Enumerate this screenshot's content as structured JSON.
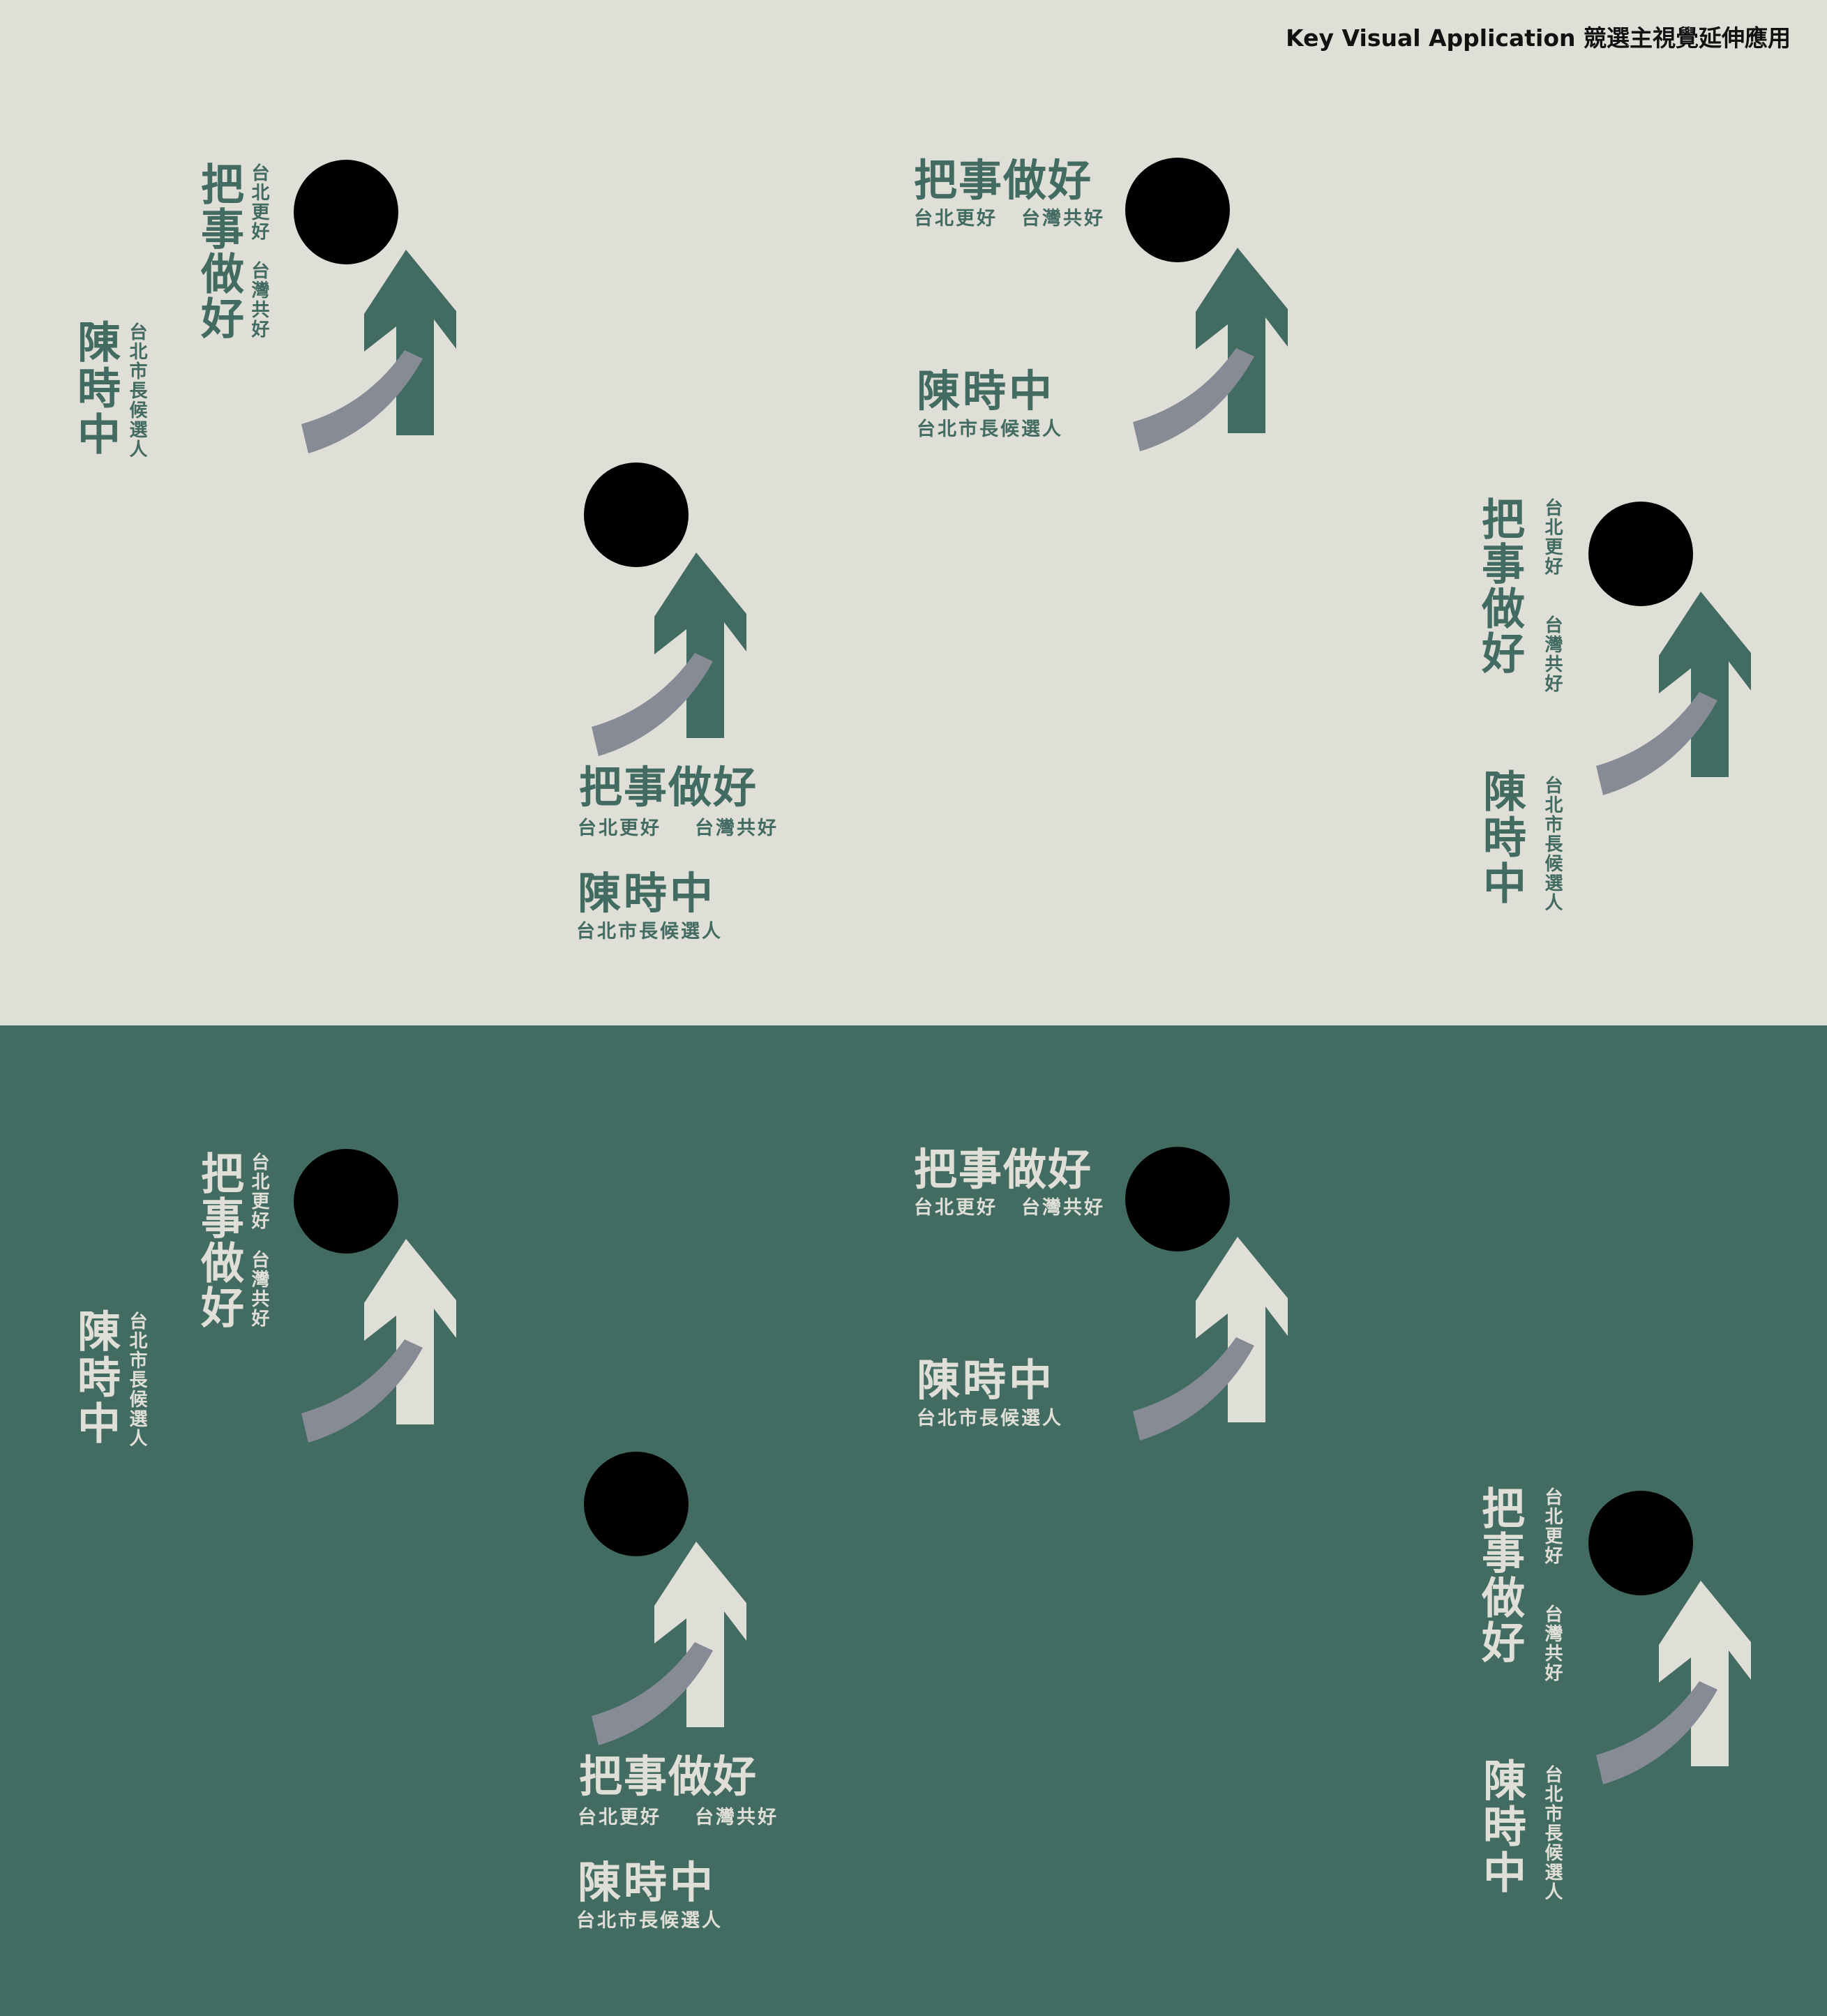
{
  "header": {
    "title": "Key Visual Application 競選主視覺延伸應用"
  },
  "slogan": {
    "main": "把事做好",
    "sub_left": "台北更好",
    "sub_right": "台灣共好"
  },
  "candidate": {
    "name": "陳時中",
    "role": "台北市長候選人"
  },
  "colors": {
    "light_background": "#e0dfd7",
    "dark_background": "#426b62",
    "brand_green": "#426b62",
    "light_arrow": "#e0dfd7",
    "black_dot": "#000000",
    "grey_swoosh": "#868b96"
  },
  "icons": {
    "logo_head": "black-circle-head",
    "logo_arrow": "upward-arrow",
    "logo_swoosh": "curved-swoosh"
  }
}
